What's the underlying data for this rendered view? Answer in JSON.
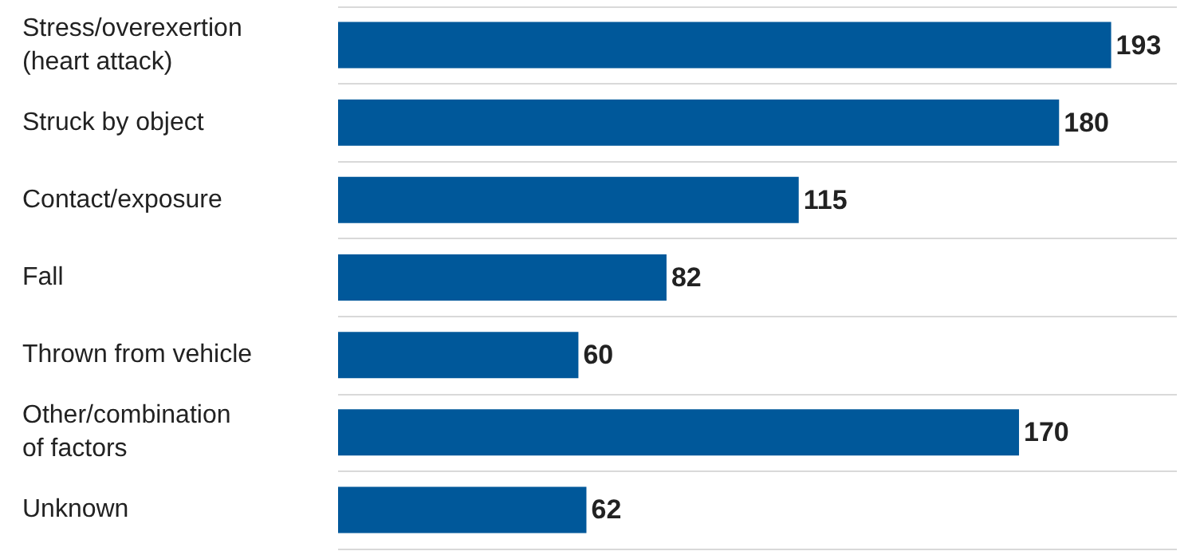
{
  "chart_data": {
    "type": "bar",
    "orientation": "horizontal",
    "categories": [
      "Stress/overexertion (heart attack)",
      "Struck by object",
      "Contact/exposure",
      "Fall",
      "Thrown from vehicle",
      "Other/combination of factors",
      "Unknown"
    ],
    "values": [
      193,
      180,
      115,
      82,
      60,
      170,
      62
    ],
    "color": "#00589a",
    "data_labels": true,
    "grid": "y"
  }
}
